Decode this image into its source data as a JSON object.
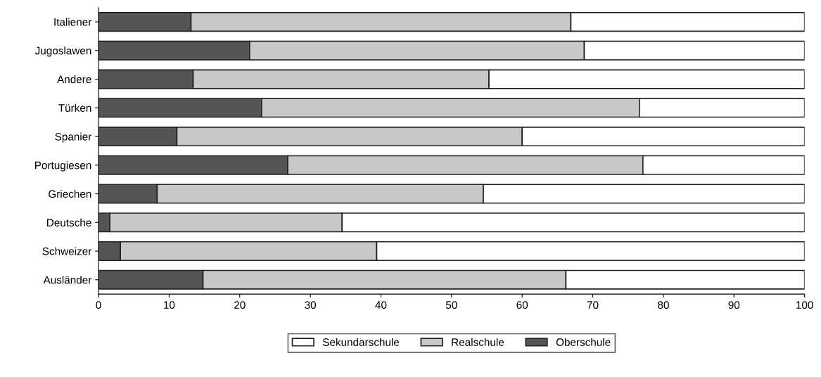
{
  "chart_data": {
    "type": "bar",
    "orientation": "horizontal",
    "stacked": true,
    "categories": [
      "Italiener",
      "Jugoslawen",
      "Andere",
      "Türken",
      "Spanier",
      "Portugiesen",
      "Griechen",
      "Deutsche",
      "Schweizer",
      "Ausländer"
    ],
    "series": [
      {
        "name": "Oberschule",
        "color": "#555555",
        "values": [
          13.1,
          21.4,
          13.4,
          23.1,
          11.1,
          26.8,
          8.3,
          1.6,
          3.1,
          14.8
        ]
      },
      {
        "name": "Realschule",
        "color": "#c8c8c8",
        "values": [
          53.8,
          47.4,
          41.9,
          53.5,
          48.9,
          50.3,
          46.2,
          32.9,
          36.3,
          51.4
        ]
      },
      {
        "name": "Sekundarschule",
        "color": "#ffffff",
        "values": [
          33.1,
          31.2,
          44.7,
          23.4,
          40.0,
          22.9,
          45.5,
          65.5,
          60.6,
          33.8
        ]
      }
    ],
    "xlim": [
      0,
      100
    ],
    "xticks": [
      0,
      10,
      20,
      30,
      40,
      50,
      60,
      70,
      80,
      90,
      100
    ],
    "grid": false,
    "legend": "bottom"
  }
}
